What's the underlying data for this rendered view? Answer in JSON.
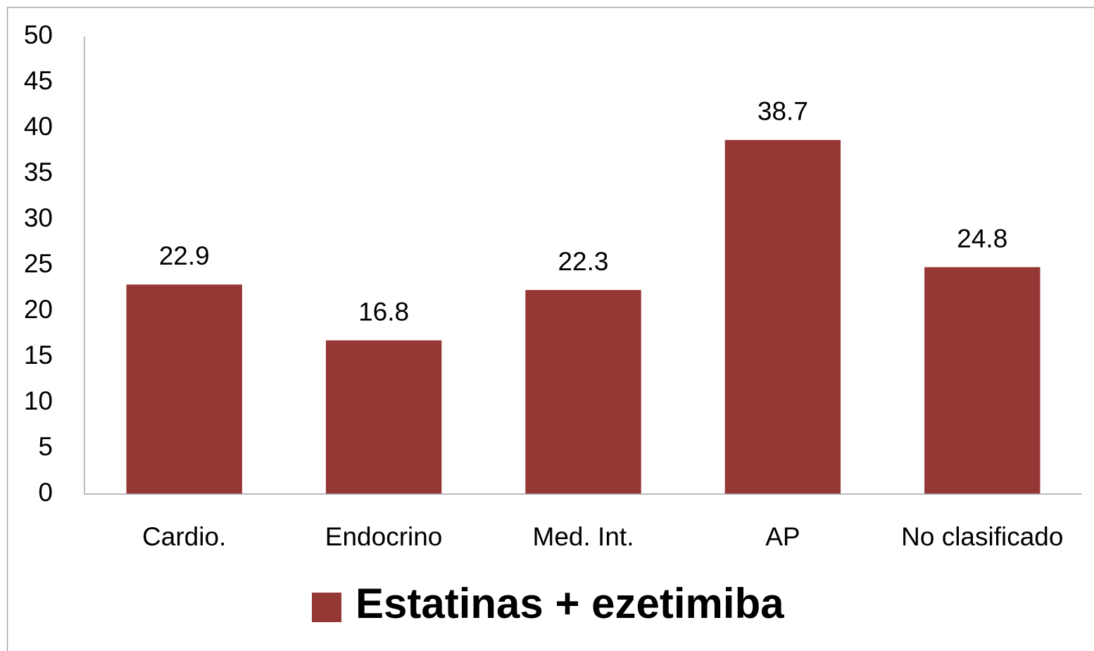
{
  "chart_data": {
    "type": "bar",
    "categories": [
      "Cardio.",
      "Endocrino",
      "Med. Int.",
      "AP",
      "No clasificado"
    ],
    "series": [
      {
        "name": "Estatinas + ezetimiba",
        "color": "#953735",
        "values": [
          22.9,
          16.8,
          22.3,
          38.7,
          24.8
        ]
      }
    ],
    "ylim": [
      0,
      50
    ],
    "yticks": [
      0,
      5,
      10,
      15,
      20,
      25,
      30,
      35,
      40,
      45,
      50
    ],
    "grid": false,
    "legend": "bottom",
    "data_labels": true
  }
}
